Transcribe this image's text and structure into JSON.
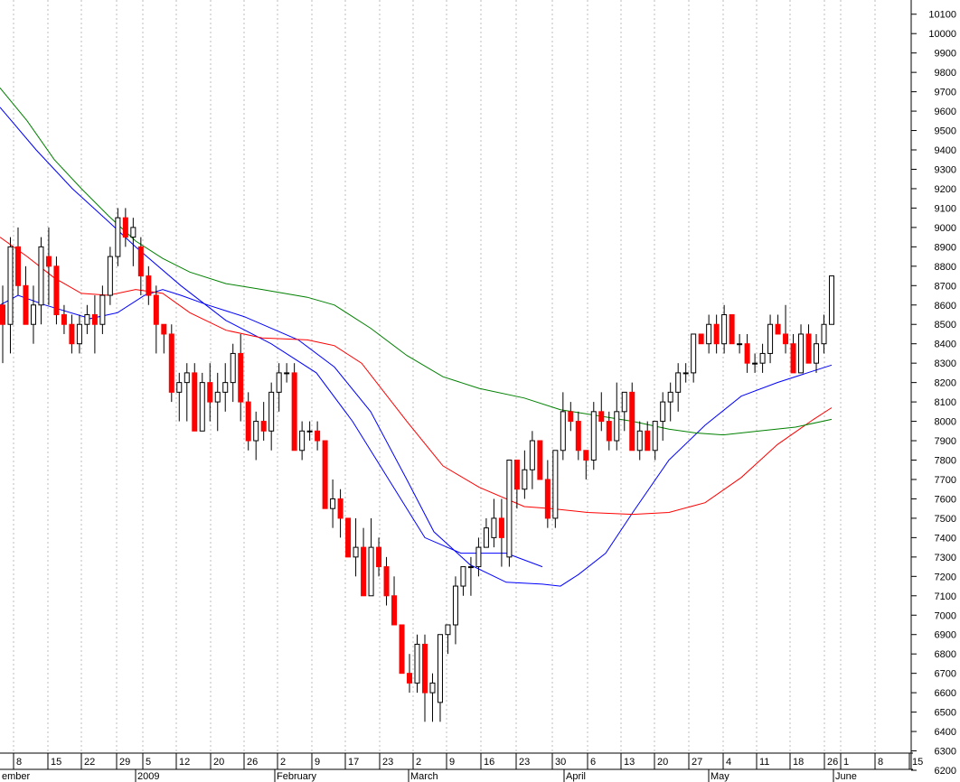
{
  "chart_data": {
    "type": "candlestick",
    "title": "",
    "xlabel": "",
    "ylabel": "",
    "ylim": [
      6200,
      10150
    ],
    "y_ticks": [
      6200,
      6300,
      6400,
      6500,
      6600,
      6700,
      6800,
      6900,
      7000,
      7100,
      7200,
      7300,
      7400,
      7500,
      7600,
      7700,
      7800,
      7900,
      8000,
      8100,
      8200,
      8300,
      8400,
      8500,
      8600,
      8700,
      8800,
      8900,
      9000,
      9100,
      9200,
      9300,
      9400,
      9500,
      9600,
      9700,
      9800,
      9900,
      10000,
      10100
    ],
    "x_tick_labels": [
      "8",
      "15",
      "22",
      "29",
      "5",
      "12",
      "20",
      "26",
      "2",
      "9",
      "17",
      "23",
      "2",
      "9",
      "16",
      "23",
      "30",
      "6",
      "13",
      "20",
      "27",
      "4",
      "11",
      "18",
      "26",
      "1",
      "8",
      "15"
    ],
    "month_labels": [
      "ember",
      "2009",
      "February",
      "March",
      "April",
      "May",
      "June"
    ],
    "candles": [
      [
        8600,
        8700,
        8300,
        8500
      ],
      [
        8500,
        8950,
        8350,
        8900
      ],
      [
        8900,
        9000,
        8650,
        8700
      ],
      [
        8700,
        8800,
        8500,
        8500
      ],
      [
        8500,
        8700,
        8400,
        8600
      ],
      [
        8600,
        8950,
        8500,
        8900
      ],
      [
        8850,
        9000,
        8600,
        8800
      ],
      [
        8800,
        8850,
        8500,
        8550
      ],
      [
        8550,
        8600,
        8450,
        8500
      ],
      [
        8500,
        8550,
        8350,
        8400
      ],
      [
        8400,
        8550,
        8350,
        8500
      ],
      [
        8500,
        8600,
        8450,
        8550
      ],
      [
        8550,
        8650,
        8350,
        8500
      ],
      [
        8500,
        8700,
        8450,
        8650
      ],
      [
        8650,
        8900,
        8600,
        8850
      ],
      [
        8850,
        9100,
        8800,
        9050
      ],
      [
        9050,
        9100,
        8900,
        8950
      ],
      [
        8950,
        9050,
        8800,
        9000
      ],
      [
        8900,
        8950,
        8650,
        8750
      ],
      [
        8750,
        8800,
        8600,
        8650
      ],
      [
        8650,
        8700,
        8350,
        8500
      ],
      [
        8500,
        8500,
        8350,
        8450
      ],
      [
        8450,
        8500,
        8100,
        8150
      ],
      [
        8150,
        8250,
        8000,
        8200
      ],
      [
        8200,
        8300,
        8000,
        8250
      ],
      [
        8250,
        8300,
        7950,
        7950
      ],
      [
        7950,
        8250,
        7950,
        8200
      ],
      [
        8200,
        8300,
        8000,
        8100
      ],
      [
        8100,
        8250,
        7950,
        8150
      ],
      [
        8150,
        8300,
        8050,
        8200
      ],
      [
        8200,
        8400,
        8100,
        8350
      ],
      [
        8350,
        8450,
        8000,
        8100
      ],
      [
        8100,
        8150,
        7850,
        7900
      ],
      [
        7900,
        8050,
        7800,
        8000
      ],
      [
        8000,
        8100,
        7900,
        7950
      ],
      [
        7950,
        8200,
        7850,
        8150
      ],
      [
        8150,
        8300,
        8050,
        8250
      ],
      [
        8250,
        8300,
        8200,
        8250
      ],
      [
        8250,
        8300,
        7850,
        7850
      ],
      [
        7850,
        8000,
        7800,
        7950
      ],
      [
        7950,
        8000,
        7900,
        7950
      ],
      [
        7950,
        8000,
        7850,
        7900
      ],
      [
        7900,
        7900,
        7550,
        7550
      ],
      [
        7550,
        7700,
        7450,
        7600
      ],
      [
        7600,
        7650,
        7400,
        7500
      ],
      [
        7500,
        7500,
        7300,
        7300
      ],
      [
        7300,
        7500,
        7200,
        7350
      ],
      [
        7350,
        7450,
        7100,
        7100
      ],
      [
        7100,
        7500,
        7100,
        7350
      ],
      [
        7350,
        7400,
        7200,
        7250
      ],
      [
        7250,
        7300,
        7050,
        7100
      ],
      [
        7100,
        7200,
        6950,
        6950
      ],
      [
        6950,
        6950,
        6700,
        6700
      ],
      [
        6700,
        6800,
        6600,
        6650
      ],
      [
        6650,
        6900,
        6600,
        6850
      ],
      [
        6850,
        6900,
        6450,
        6600
      ],
      [
        6600,
        6700,
        6450,
        6650
      ],
      [
        6550,
        6900,
        6450,
        6900
      ],
      [
        6900,
        6950,
        6800,
        6950
      ],
      [
        6950,
        7200,
        6850,
        7150
      ],
      [
        7150,
        7250,
        7100,
        7250
      ],
      [
        7250,
        7300,
        7100,
        7250
      ],
      [
        7250,
        7400,
        7200,
        7350
      ],
      [
        7350,
        7500,
        7350,
        7450
      ],
      [
        7400,
        7600,
        7350,
        7500
      ],
      [
        7500,
        7600,
        7250,
        7400
      ],
      [
        7300,
        7800,
        7250,
        7800
      ],
      [
        7800,
        7800,
        7550,
        7650
      ],
      [
        7650,
        7850,
        7600,
        7750
      ],
      [
        7750,
        7950,
        7650,
        7900
      ],
      [
        7900,
        7900,
        7700,
        7700
      ],
      [
        7700,
        7800,
        7450,
        7500
      ],
      [
        7500,
        7850,
        7450,
        7850
      ],
      [
        7850,
        8150,
        7800,
        8050
      ],
      [
        8050,
        8100,
        7950,
        8000
      ],
      [
        8000,
        8050,
        7800,
        7850
      ],
      [
        7850,
        7850,
        7700,
        7800
      ],
      [
        7800,
        8100,
        7750,
        8050
      ],
      [
        8050,
        8150,
        7950,
        8000
      ],
      [
        8000,
        8050,
        7850,
        7900
      ],
      [
        7900,
        8200,
        7850,
        8050
      ],
      [
        8050,
        8150,
        7950,
        8150
      ],
      [
        8150,
        8200,
        7850,
        7850
      ],
      [
        7850,
        8000,
        7800,
        7950
      ],
      [
        7950,
        8000,
        7850,
        7850
      ],
      [
        7850,
        8000,
        7800,
        8000
      ],
      [
        8000,
        8150,
        7900,
        8100
      ],
      [
        8100,
        8200,
        8000,
        8150
      ],
      [
        8150,
        8300,
        8050,
        8250
      ],
      [
        8250,
        8300,
        8200,
        8250
      ],
      [
        8250,
        8450,
        8200,
        8450
      ],
      [
        8450,
        8450,
        8400,
        8400
      ],
      [
        8400,
        8550,
        8350,
        8500
      ],
      [
        8500,
        8550,
        8350,
        8400
      ],
      [
        8400,
        8600,
        8350,
        8550
      ],
      [
        8550,
        8550,
        8400,
        8400
      ],
      [
        8400,
        8450,
        8350,
        8400
      ],
      [
        8400,
        8450,
        8250,
        8300
      ],
      [
        8300,
        8350,
        8250,
        8300
      ],
      [
        8300,
        8400,
        8250,
        8350
      ],
      [
        8350,
        8550,
        8300,
        8500
      ],
      [
        8500,
        8550,
        8450,
        8450
      ],
      [
        8450,
        8600,
        8350,
        8400
      ],
      [
        8400,
        8450,
        8250,
        8250
      ],
      [
        8250,
        8500,
        8250,
        8450
      ],
      [
        8450,
        8500,
        8300,
        8300
      ],
      [
        8300,
        8450,
        8250,
        8400
      ],
      [
        8400,
        8550,
        8350,
        8500
      ],
      [
        8500,
        8750,
        8500,
        8750
      ]
    ],
    "series": [
      {
        "color": "#0000ff",
        "values": [
          [
            0,
            9620
          ],
          [
            40,
            9400
          ],
          [
            80,
            9200
          ],
          [
            120,
            9030
          ],
          [
            150,
            8900
          ],
          [
            200,
            8700
          ],
          [
            250,
            8520
          ],
          [
            300,
            8400
          ],
          [
            350,
            8250
          ],
          [
            390,
            8000
          ],
          [
            430,
            7700
          ],
          [
            470,
            7400
          ],
          [
            510,
            7320
          ],
          [
            560,
            7320
          ],
          [
            600,
            7250
          ],
          [
            640,
            7200
          ],
          [
            680,
            7270
          ],
          [
            720,
            7470
          ],
          [
            760,
            7700
          ],
          [
            800,
            7900
          ],
          [
            840,
            8060
          ],
          [
            880,
            8180
          ],
          [
            920,
            8300
          ]
        ]
      },
      {
        "color": "#0000ff",
        "values": [
          [
            0,
            8600
          ],
          [
            20,
            8650
          ],
          [
            50,
            8600
          ],
          [
            100,
            8530
          ],
          [
            130,
            8560
          ],
          [
            160,
            8650
          ],
          [
            180,
            8680
          ],
          [
            200,
            8650
          ],
          [
            230,
            8600
          ],
          [
            270,
            8540
          ],
          [
            290,
            8500
          ],
          [
            330,
            8420
          ],
          [
            370,
            8280
          ],
          [
            410,
            8050
          ],
          [
            450,
            7700
          ],
          [
            480,
            7430
          ],
          [
            520,
            7260
          ],
          [
            560,
            7170
          ],
          [
            600,
            7160
          ],
          [
            620,
            7150
          ],
          [
            640,
            7210
          ],
          [
            670,
            7320
          ],
          [
            700,
            7530
          ],
          [
            740,
            7800
          ],
          [
            780,
            7980
          ],
          [
            820,
            8130
          ],
          [
            860,
            8200
          ],
          [
            920,
            8290
          ]
        ]
      },
      {
        "color": "#ff0000",
        "values": [
          [
            0,
            8950
          ],
          [
            30,
            8850
          ],
          [
            60,
            8740
          ],
          [
            90,
            8660
          ],
          [
            120,
            8650
          ],
          [
            150,
            8680
          ],
          [
            180,
            8660
          ],
          [
            210,
            8560
          ],
          [
            250,
            8470
          ],
          [
            290,
            8430
          ],
          [
            340,
            8420
          ],
          [
            370,
            8390
          ],
          [
            400,
            8300
          ],
          [
            450,
            8000
          ],
          [
            490,
            7770
          ],
          [
            530,
            7660
          ],
          [
            580,
            7560
          ],
          [
            610,
            7550
          ],
          [
            650,
            7530
          ],
          [
            700,
            7520
          ],
          [
            740,
            7530
          ],
          [
            780,
            7580
          ],
          [
            820,
            7710
          ],
          [
            860,
            7880
          ],
          [
            900,
            8010
          ],
          [
            920,
            8070
          ]
        ]
      },
      {
        "color": "#008000",
        "values": [
          [
            0,
            9720
          ],
          [
            30,
            9550
          ],
          [
            60,
            9350
          ],
          [
            90,
            9200
          ],
          [
            120,
            9060
          ],
          [
            150,
            8930
          ],
          [
            180,
            8840
          ],
          [
            210,
            8770
          ],
          [
            250,
            8710
          ],
          [
            290,
            8680
          ],
          [
            340,
            8640
          ],
          [
            370,
            8600
          ],
          [
            410,
            8480
          ],
          [
            450,
            8340
          ],
          [
            490,
            8230
          ],
          [
            530,
            8170
          ],
          [
            580,
            8120
          ],
          [
            620,
            8060
          ],
          [
            660,
            8030
          ],
          [
            700,
            8000
          ],
          [
            740,
            7960
          ],
          [
            770,
            7940
          ],
          [
            800,
            7930
          ],
          [
            840,
            7950
          ],
          [
            880,
            7970
          ],
          [
            920,
            8010
          ]
        ]
      }
    ]
  }
}
